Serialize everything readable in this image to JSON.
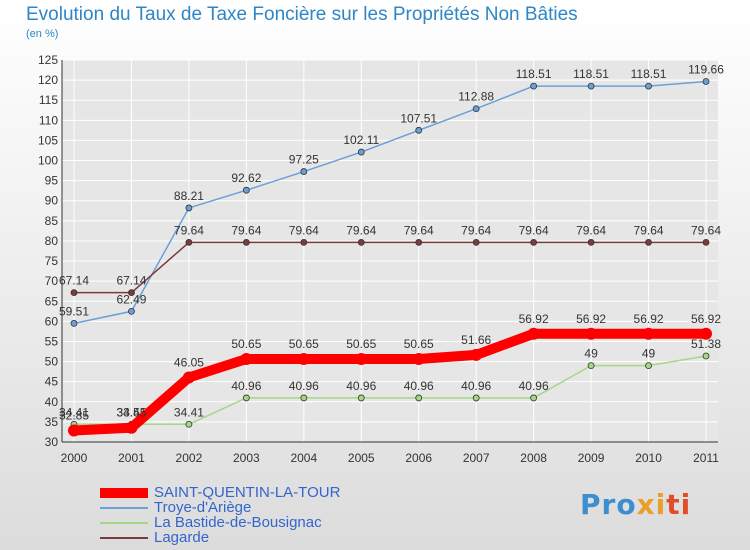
{
  "header": {
    "title": "Evolution du Taux de Taxe Foncière sur les Propriétés Non Bâties",
    "unit": "(en %)"
  },
  "brand": {
    "text": "Proxiti"
  },
  "colors": {
    "title": "#2f86c6",
    "grid": "#ffffff",
    "axis": "#333333"
  },
  "chart_data": {
    "type": "line",
    "x": [
      "2000",
      "2001",
      "2002",
      "2003",
      "2004",
      "2005",
      "2006",
      "2007",
      "2008",
      "2009",
      "2010",
      "2011"
    ],
    "ylim": [
      30,
      125
    ],
    "yticks": [
      30,
      35,
      40,
      45,
      50,
      55,
      60,
      65,
      70,
      75,
      80,
      85,
      90,
      95,
      100,
      105,
      110,
      115,
      120,
      125
    ],
    "grid": true,
    "legend": "bottom-left",
    "series": [
      {
        "name": "SAINT-QUENTIN-LA-TOUR",
        "color": "#ff0000",
        "values": [
          32.85,
          33.55,
          46.05,
          50.65,
          50.65,
          50.65,
          50.65,
          51.66,
          56.92,
          56.92,
          56.92,
          56.92
        ],
        "labels": [
          "32.85",
          "33.55",
          "46.05",
          "50.65",
          "50.65",
          "50.65",
          "50.65",
          "51.66",
          "56.92",
          "56.92",
          "56.92",
          "56.92"
        ]
      },
      {
        "name": "Troye-d'Ariège",
        "color": "#6aa0d8",
        "values": [
          59.51,
          62.49,
          88.21,
          92.62,
          97.25,
          102.11,
          107.51,
          112.88,
          118.51,
          118.51,
          118.51,
          119.66
        ],
        "labels": [
          "59.51",
          "62.49",
          "88.21",
          "92.62",
          "97.25",
          "102.11",
          "107.51",
          "112.88",
          "118.51",
          "118.51",
          "118.51",
          "119.66"
        ]
      },
      {
        "name": "La Bastide-de-Bousignac",
        "color": "#a6d785",
        "values": [
          34.41,
          34.41,
          34.41,
          40.96,
          40.96,
          40.96,
          40.96,
          40.96,
          40.96,
          49,
          49,
          51.38
        ],
        "labels": [
          "34.41",
          "34.41",
          "34.41",
          "40.96",
          "40.96",
          "40.96",
          "40.96",
          "40.96",
          "40.96",
          "49",
          "49",
          "51.38"
        ]
      },
      {
        "name": "Lagarde",
        "color": "#7a3c3c",
        "values": [
          67.14,
          67.14,
          79.64,
          79.64,
          79.64,
          79.64,
          79.64,
          79.64,
          79.64,
          79.64,
          79.64,
          79.64
        ],
        "labels": [
          "67.14",
          "67.14",
          "79.64",
          "79.64",
          "79.64",
          "79.64",
          "79.64",
          "79.64",
          "79.64",
          "79.64",
          "79.64",
          "79.64"
        ]
      }
    ]
  }
}
